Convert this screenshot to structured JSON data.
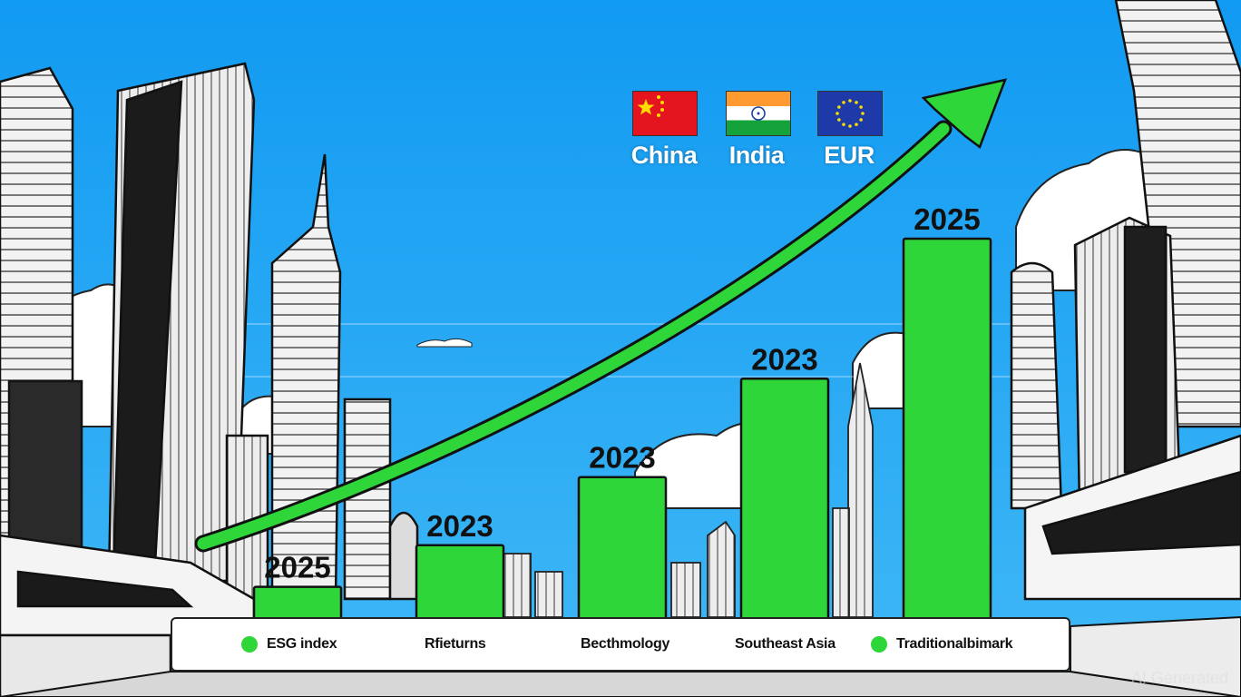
{
  "chart_data": {
    "type": "bar",
    "title": "",
    "xlabel": "",
    "ylabel": "",
    "bar_color": "#2fd63a",
    "trend_arrow_color": "#2fd63a",
    "ylim": [
      0,
      100
    ],
    "grid": false,
    "categories": [
      "2025",
      "2023",
      "2023",
      "2023",
      "2025"
    ],
    "values": [
      8,
      19,
      37,
      63,
      100
    ],
    "legend_placement": "bottom",
    "legend": [
      {
        "label": "ESG index",
        "dot": true
      },
      {
        "label": "Rfieturns",
        "dot": false
      },
      {
        "label": "Becthmology",
        "dot": false
      },
      {
        "label": "Southeast Asia",
        "dot": false
      },
      {
        "label": "Traditionalbimark",
        "dot": true
      }
    ]
  },
  "flags": [
    {
      "label": "China",
      "icon": "china-flag-icon"
    },
    {
      "label": "India",
      "icon": "india-flag-icon"
    },
    {
      "label": "EUR",
      "icon": "eu-flag-icon"
    }
  ],
  "colors": {
    "sky": "#1fa0f2",
    "bar": "#2fd63a",
    "outline": "#111111"
  },
  "watermark": "AI Generated"
}
